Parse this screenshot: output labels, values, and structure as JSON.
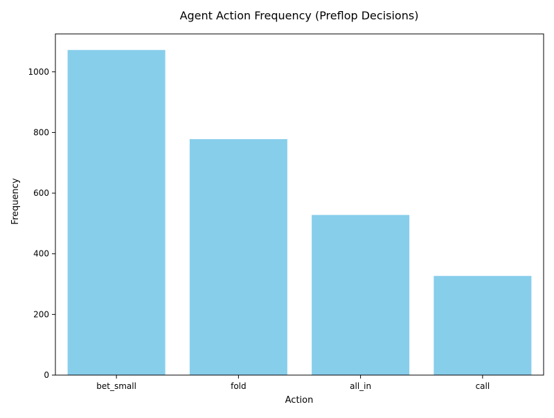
{
  "chart_data": {
    "type": "bar",
    "title": "Agent Action Frequency (Preflop Decisions)",
    "xlabel": "Action",
    "ylabel": "Frequency",
    "categories": [
      "bet_small",
      "fold",
      "all_in",
      "call"
    ],
    "values": [
      1072,
      778,
      528,
      327
    ],
    "ylim": [
      0,
      1125
    ],
    "yticks": [
      0,
      200,
      400,
      600,
      800,
      1000
    ],
    "bar_color": "#87CEEB",
    "grid": false,
    "legend": "none"
  }
}
